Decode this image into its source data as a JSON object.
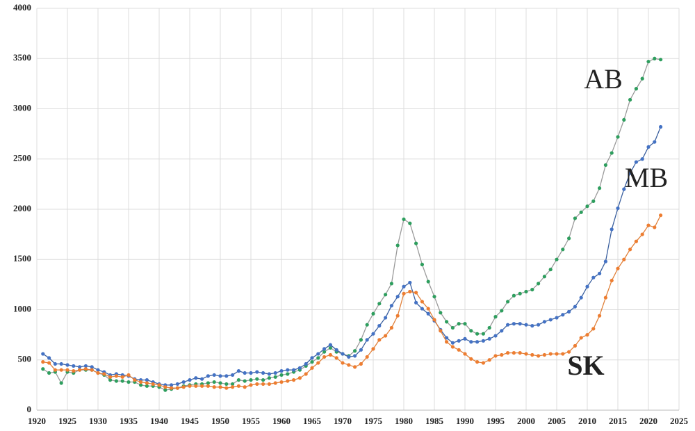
{
  "chart_data": {
    "type": "line",
    "x": [
      1921,
      1922,
      1923,
      1924,
      1925,
      1926,
      1927,
      1928,
      1929,
      1930,
      1931,
      1932,
      1933,
      1934,
      1935,
      1936,
      1937,
      1938,
      1939,
      1940,
      1941,
      1942,
      1943,
      1944,
      1945,
      1946,
      1947,
      1948,
      1949,
      1950,
      1951,
      1952,
      1953,
      1954,
      1955,
      1956,
      1957,
      1958,
      1959,
      1960,
      1961,
      1962,
      1963,
      1964,
      1965,
      1966,
      1967,
      1968,
      1969,
      1970,
      1971,
      1972,
      1973,
      1974,
      1975,
      1976,
      1977,
      1978,
      1979,
      1980,
      1981,
      1982,
      1983,
      1984,
      1985,
      1986,
      1987,
      1988,
      1989,
      1990,
      1991,
      1992,
      1993,
      1994,
      1995,
      1996,
      1997,
      1998,
      1999,
      2000,
      2001,
      2002,
      2003,
      2004,
      2005,
      2006,
      2007,
      2008,
      2009,
      2010,
      2011,
      2012,
      2013,
      2014,
      2015,
      2016,
      2017,
      2018,
      2019,
      2020,
      2021,
      2022
    ],
    "series": [
      {
        "name": "AB",
        "color": "#2e9e5e",
        "line_color": "#9a9a9a",
        "label_color": "#1a9850",
        "values": [
          410,
          370,
          380,
          270,
          380,
          370,
          400,
          400,
          400,
          370,
          350,
          300,
          290,
          290,
          280,
          280,
          250,
          240,
          240,
          230,
          200,
          210,
          220,
          240,
          250,
          260,
          260,
          270,
          280,
          270,
          260,
          260,
          300,
          290,
          300,
          310,
          300,
          320,
          330,
          350,
          360,
          380,
          400,
          440,
          480,
          520,
          580,
          620,
          580,
          560,
          540,
          590,
          700,
          850,
          960,
          1060,
          1150,
          1260,
          1640,
          1900,
          1860,
          1660,
          1450,
          1280,
          1130,
          970,
          880,
          820,
          860,
          860,
          790,
          760,
          760,
          820,
          930,
          990,
          1080,
          1140,
          1160,
          1180,
          1200,
          1260,
          1330,
          1400,
          1500,
          1600,
          1710,
          1910,
          1970,
          2030,
          2080,
          2210,
          2440,
          2560,
          2720,
          2890,
          3090,
          3200,
          3300,
          3470,
          3500,
          3490
        ]
      },
      {
        "name": "MB",
        "color": "#4472c4",
        "line_color": "#3a5f9e",
        "label_color": "#1f3a6e",
        "values": [
          560,
          520,
          460,
          460,
          450,
          440,
          430,
          440,
          430,
          400,
          380,
          350,
          360,
          350,
          340,
          310,
          300,
          300,
          280,
          260,
          250,
          250,
          260,
          280,
          300,
          320,
          310,
          340,
          350,
          340,
          340,
          350,
          390,
          370,
          370,
          380,
          370,
          360,
          370,
          390,
          400,
          400,
          420,
          460,
          520,
          560,
          610,
          650,
          600,
          560,
          530,
          540,
          600,
          700,
          760,
          840,
          920,
          1040,
          1130,
          1230,
          1270,
          1070,
          1010,
          960,
          890,
          800,
          720,
          670,
          690,
          710,
          680,
          680,
          690,
          710,
          740,
          790,
          850,
          860,
          860,
          850,
          840,
          850,
          880,
          900,
          920,
          950,
          980,
          1030,
          1120,
          1230,
          1320,
          1360,
          1480,
          1800,
          2010,
          2200,
          2360,
          2470,
          2500,
          2620,
          2670,
          2820
        ]
      },
      {
        "name": "SK",
        "color": "#ed7d31",
        "line_color": "#e0803a",
        "label_color": "#e41a1c",
        "values": [
          480,
          470,
          400,
          400,
          400,
          390,
          400,
          410,
          400,
          370,
          360,
          330,
          340,
          330,
          350,
          300,
          280,
          270,
          260,
          250,
          230,
          220,
          220,
          230,
          240,
          240,
          240,
          240,
          230,
          230,
          220,
          230,
          240,
          230,
          250,
          260,
          260,
          260,
          270,
          280,
          290,
          300,
          320,
          360,
          420,
          470,
          530,
          550,
          520,
          470,
          450,
          430,
          460,
          530,
          610,
          700,
          740,
          820,
          940,
          1160,
          1180,
          1170,
          1080,
          1010,
          900,
          790,
          680,
          630,
          600,
          560,
          510,
          480,
          470,
          500,
          540,
          550,
          570,
          570,
          570,
          560,
          550,
          540,
          550,
          560,
          560,
          560,
          580,
          640,
          720,
          750,
          810,
          940,
          1120,
          1290,
          1410,
          1500,
          1600,
          1680,
          1750,
          1840,
          1820,
          1940
        ]
      }
    ],
    "xlim": [
      1920,
      2025
    ],
    "xticks": [
      1920,
      1925,
      1930,
      1935,
      1940,
      1945,
      1950,
      1955,
      1960,
      1965,
      1970,
      1975,
      1980,
      1985,
      1990,
      1995,
      2000,
      2005,
      2010,
      2015,
      2020,
      2025
    ],
    "ylim": [
      0,
      4000
    ],
    "yticks": [
      0,
      500,
      1000,
      1500,
      2000,
      2500,
      3000,
      3500,
      4000
    ],
    "grid": true
  }
}
